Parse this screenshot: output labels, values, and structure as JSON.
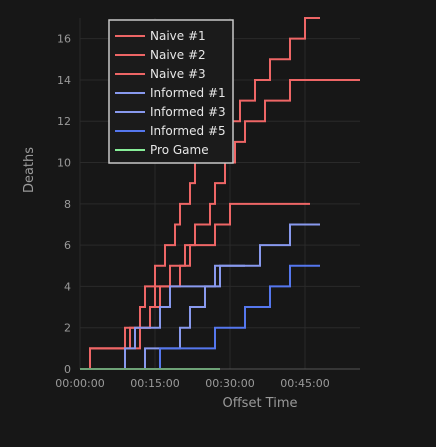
{
  "chart_data": {
    "type": "line",
    "step": true,
    "xlabel": "Offset Time",
    "ylabel": "Deaths",
    "x_unit": "minutes",
    "xlim": [
      0,
      56
    ],
    "ylim": [
      0,
      17
    ],
    "x_ticks": [
      {
        "value": 0,
        "label": "00:00:00"
      },
      {
        "value": 15,
        "label": "00:15:00"
      },
      {
        "value": 30,
        "label": "00:30:00"
      },
      {
        "value": 45,
        "label": "00:45:00"
      }
    ],
    "y_ticks": [
      0,
      2,
      4,
      6,
      8,
      10,
      12,
      14,
      16
    ],
    "grid": true,
    "legend_position": "top-left",
    "series": [
      {
        "name": "Naive #1",
        "color": "#ee6666",
        "points": [
          [
            0,
            0
          ],
          [
            2,
            1
          ],
          [
            9,
            2
          ],
          [
            12,
            3
          ],
          [
            13,
            4
          ],
          [
            15,
            5
          ],
          [
            17,
            6
          ],
          [
            19,
            7
          ],
          [
            20,
            8
          ],
          [
            22,
            9
          ],
          [
            23,
            10
          ],
          [
            26,
            11
          ],
          [
            28,
            12
          ],
          [
            32,
            13
          ],
          [
            35,
            14
          ],
          [
            38,
            15
          ],
          [
            42,
            16
          ],
          [
            45,
            17
          ],
          [
            48,
            17
          ]
        ]
      },
      {
        "name": "Naive #2",
        "color": "#ee6666",
        "points": [
          [
            0,
            0
          ],
          [
            2,
            1
          ],
          [
            10,
            2
          ],
          [
            14,
            3
          ],
          [
            16,
            4
          ],
          [
            18,
            5
          ],
          [
            21,
            6
          ],
          [
            23,
            7
          ],
          [
            26,
            8
          ],
          [
            27,
            9
          ],
          [
            29,
            10
          ],
          [
            31,
            11
          ],
          [
            33,
            12
          ],
          [
            37,
            13
          ],
          [
            42,
            14
          ],
          [
            47,
            14
          ],
          [
            56,
            14
          ]
        ]
      },
      {
        "name": "Naive #3",
        "color": "#ee6666",
        "points": [
          [
            0,
            0
          ],
          [
            2,
            1
          ],
          [
            12,
            2
          ],
          [
            14,
            3
          ],
          [
            15,
            4
          ],
          [
            20,
            5
          ],
          [
            22,
            6
          ],
          [
            27,
            7
          ],
          [
            30,
            8
          ],
          [
            39,
            8
          ],
          [
            46,
            8
          ]
        ]
      },
      {
        "name": "Informed #1",
        "color": "#8899ee",
        "points": [
          [
            0,
            0
          ],
          [
            9,
            1
          ],
          [
            11,
            2
          ],
          [
            16,
            3
          ],
          [
            18,
            4
          ],
          [
            27,
            5
          ],
          [
            36,
            6
          ],
          [
            42,
            7
          ],
          [
            48,
            7
          ]
        ]
      },
      {
        "name": "Informed #3",
        "color": "#8899ee",
        "points": [
          [
            0,
            0
          ],
          [
            13,
            1
          ],
          [
            20,
            2
          ],
          [
            22,
            3
          ],
          [
            25,
            4
          ],
          [
            28,
            5
          ],
          [
            33,
            5
          ]
        ]
      },
      {
        "name": "Informed #5",
        "color": "#5577ee",
        "points": [
          [
            0,
            0
          ],
          [
            16,
            1
          ],
          [
            27,
            2
          ],
          [
            33,
            3
          ],
          [
            38,
            4
          ],
          [
            42,
            5
          ],
          [
            44,
            5
          ],
          [
            46,
            5
          ],
          [
            48,
            5
          ]
        ]
      },
      {
        "name": "Pro Game",
        "color": "#88ee99",
        "points": [
          [
            0,
            0
          ],
          [
            28,
            0
          ]
        ]
      }
    ]
  }
}
